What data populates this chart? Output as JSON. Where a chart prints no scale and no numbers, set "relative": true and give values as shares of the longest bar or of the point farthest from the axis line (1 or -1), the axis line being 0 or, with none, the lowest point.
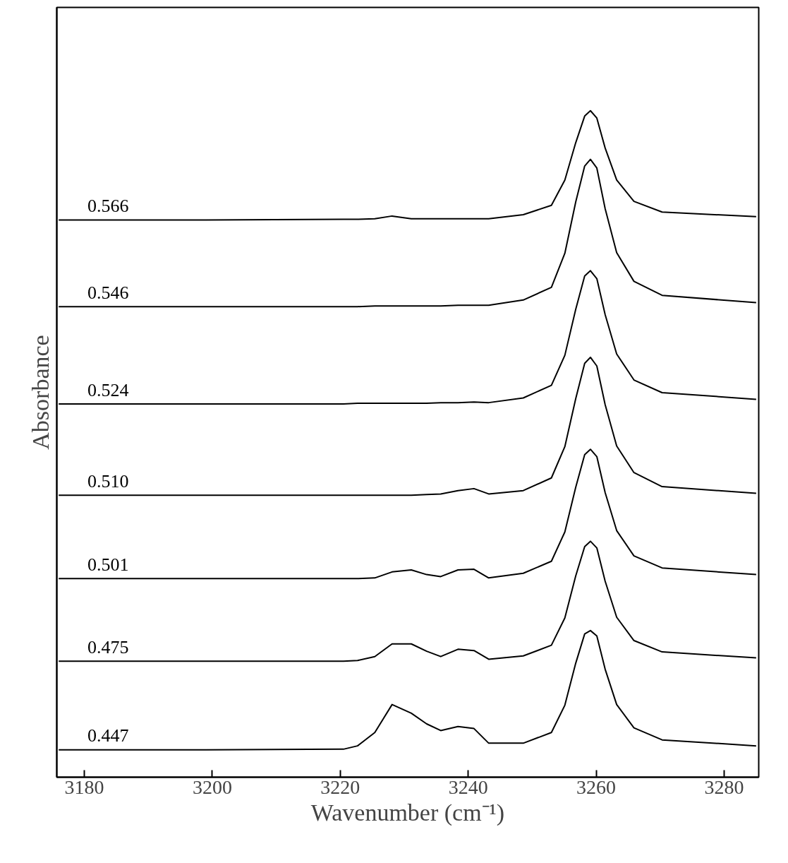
{
  "chart_data": {
    "type": "line",
    "relative": true,
    "xlabel": "Wavenumber (cm⁻¹)",
    "ylabel": "Absorbance",
    "xlim": [
      3175.7,
      3285.4
    ],
    "xticks": [
      3180,
      3200,
      3220,
      3240,
      3260,
      3280
    ],
    "grid": false,
    "marker": "none",
    "line_style": "solid",
    "x": [
      3176,
      3199,
      3220.5,
      3222.7,
      3225.4,
      3228.1,
      3231.1,
      3233.5,
      3235.7,
      3238.4,
      3240.9,
      3243.2,
      3248.6,
      3253,
      3255.1,
      3256.8,
      3258.2,
      3259.1,
      3260.1,
      3261.4,
      3263.2,
      3265.9,
      3270.3,
      3285
    ],
    "series": [
      {
        "name": "0.566",
        "color": "#000000",
        "values": [
          0.836,
          0.836,
          0.837,
          0.837,
          0.838,
          0.842,
          0.838,
          0.838,
          0.838,
          0.838,
          0.838,
          0.838,
          0.844,
          0.858,
          0.896,
          0.952,
          0.992,
          1.0,
          0.989,
          0.944,
          0.896,
          0.864,
          0.848,
          0.841
        ]
      },
      {
        "name": "0.546",
        "color": "#000000",
        "values": [
          0.706,
          0.706,
          0.706,
          0.706,
          0.707,
          0.707,
          0.707,
          0.707,
          0.707,
          0.708,
          0.708,
          0.708,
          0.716,
          0.735,
          0.786,
          0.863,
          0.917,
          0.927,
          0.914,
          0.853,
          0.787,
          0.744,
          0.723,
          0.712
        ]
      },
      {
        "name": "0.524",
        "color": "#000000",
        "values": [
          0.56,
          0.56,
          0.56,
          0.561,
          0.561,
          0.561,
          0.561,
          0.561,
          0.562,
          0.562,
          0.563,
          0.562,
          0.569,
          0.588,
          0.633,
          0.702,
          0.752,
          0.76,
          0.748,
          0.694,
          0.635,
          0.596,
          0.577,
          0.567
        ]
      },
      {
        "name": "0.510",
        "color": "#000000",
        "values": [
          0.423,
          0.423,
          0.423,
          0.423,
          0.423,
          0.423,
          0.423,
          0.424,
          0.425,
          0.43,
          0.433,
          0.425,
          0.43,
          0.449,
          0.496,
          0.568,
          0.621,
          0.63,
          0.617,
          0.559,
          0.497,
          0.457,
          0.436,
          0.426
        ]
      },
      {
        "name": "0.501",
        "color": "#000000",
        "values": [
          0.298,
          0.298,
          0.298,
          0.298,
          0.299,
          0.308,
          0.311,
          0.304,
          0.301,
          0.311,
          0.312,
          0.299,
          0.306,
          0.324,
          0.368,
          0.435,
          0.484,
          0.492,
          0.481,
          0.427,
          0.37,
          0.332,
          0.314,
          0.304
        ]
      },
      {
        "name": "0.475",
        "color": "#000000",
        "values": [
          0.174,
          0.174,
          0.174,
          0.175,
          0.181,
          0.2,
          0.2,
          0.189,
          0.181,
          0.192,
          0.19,
          0.177,
          0.182,
          0.198,
          0.239,
          0.302,
          0.346,
          0.354,
          0.344,
          0.294,
          0.24,
          0.205,
          0.188,
          0.179
        ]
      },
      {
        "name": "0.447",
        "color": "#000000",
        "values": [
          0.041,
          0.041,
          0.042,
          0.047,
          0.067,
          0.109,
          0.096,
          0.08,
          0.07,
          0.076,
          0.073,
          0.051,
          0.051,
          0.067,
          0.108,
          0.171,
          0.215,
          0.22,
          0.212,
          0.162,
          0.109,
          0.074,
          0.056,
          0.047
        ]
      }
    ]
  }
}
